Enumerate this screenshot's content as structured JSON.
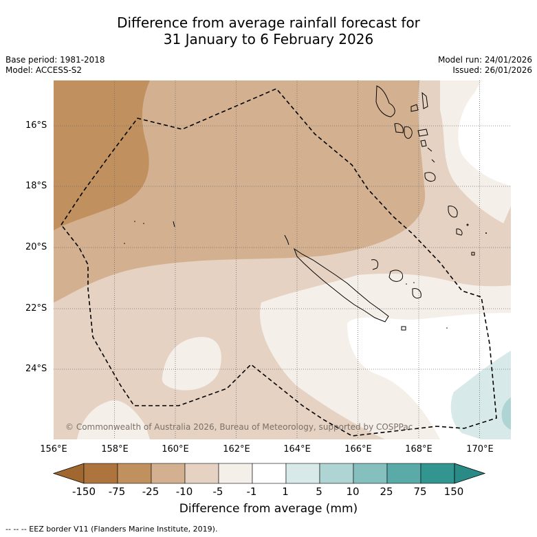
{
  "title_line1": "Difference from average rainfall forecast for",
  "title_line2": "31 January to 6 February 2026",
  "base_period": "Base period: 1981-2018",
  "model": "Model: ACCESS-S2",
  "model_run": "Model run: 24/01/2026",
  "issued": "Issued: 26/01/2026",
  "lat_ticks": [
    "16°S",
    "18°S",
    "20°S",
    "22°S",
    "24°S"
  ],
  "lon_ticks": [
    "156°E",
    "158°E",
    "160°E",
    "162°E",
    "164°E",
    "166°E",
    "168°E",
    "170°E"
  ],
  "colorbar": {
    "ticks": [
      "-150",
      "-75",
      "-25",
      "-10",
      "-5",
      "-1",
      "1",
      "5",
      "10",
      "25",
      "75",
      "150"
    ],
    "label": "Difference from average (mm)",
    "colors": [
      "#ad743d",
      "#c0915f",
      "#d3b190",
      "#e5d2c2",
      "#f5efea",
      "#ffffff",
      "#d7e9e8",
      "#aed4d3",
      "#85bfbe",
      "#5aaaa8",
      "#33958f"
    ],
    "end_low_color": "#a06830",
    "end_high_color": "#2a8a85"
  },
  "copyright": "© Commonwealth of Australia 2026, Bureau of Meteorology, supported by COSPPac",
  "legend": "--  --  -- EEZ border V11 (Flanders Marine Institute, 2019)."
}
